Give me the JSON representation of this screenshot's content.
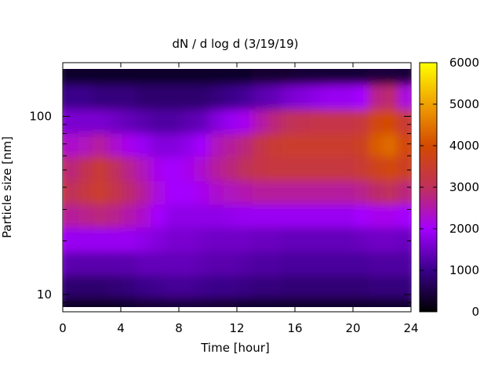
{
  "chart_data": {
    "type": "heatmap",
    "title": "dN / d log d (3/19/19)",
    "xlabel": "Time [hour]",
    "ylabel": "Particle size [nm]",
    "xlim": [
      0,
      24
    ],
    "ylim": [
      8,
      200
    ],
    "y_scale": "log",
    "x_ticks": [
      "0",
      "4",
      "8",
      "12",
      "16",
      "20",
      "24"
    ],
    "y_ticks": [
      "10",
      "100"
    ],
    "colorbar": {
      "range": [
        0,
        6000
      ],
      "ticks": [
        "0",
        "1000",
        "2000",
        "3000",
        "4000",
        "5000",
        "6000"
      ],
      "palette": "black-blue-magenta-red-orange-yellow"
    },
    "x": [
      0,
      1,
      2,
      3,
      4,
      5,
      6,
      7,
      8,
      9,
      10,
      11,
      12,
      13,
      14,
      15,
      16,
      17,
      18,
      19,
      20,
      21,
      22,
      23,
      24
    ],
    "sizes_nm": [
      9,
      12,
      16,
      22,
      30,
      40,
      55,
      75,
      100,
      140,
      190
    ],
    "values": [
      [
        300,
        900,
        1500,
        2100,
        2800,
        3600,
        3200,
        2500,
        1700,
        900,
        300
      ],
      [
        250,
        800,
        1300,
        1900,
        2600,
        3000,
        2800,
        2300,
        1600,
        1000,
        300
      ],
      [
        250,
        800,
        1300,
        1900,
        2700,
        3300,
        3100,
        2400,
        1600,
        1000,
        300
      ],
      [
        250,
        800,
        1300,
        1900,
        2800,
        3500,
        3400,
        2600,
        1600,
        900,
        300
      ],
      [
        250,
        850,
        1300,
        1900,
        2700,
        3200,
        3000,
        2300,
        1500,
        900,
        300
      ],
      [
        300,
        900,
        1300,
        1900,
        2500,
        2900,
        2700,
        2100,
        1400,
        900,
        300
      ],
      [
        350,
        1000,
        1400,
        1800,
        2300,
        2600,
        2400,
        1900,
        1300,
        800,
        300
      ],
      [
        350,
        1050,
        1400,
        1700,
        2000,
        2200,
        2100,
        1700,
        1200,
        800,
        300
      ],
      [
        400,
        1100,
        1400,
        1600,
        1800,
        2000,
        2000,
        1700,
        1200,
        800,
        300
      ],
      [
        400,
        1100,
        1400,
        1600,
        1800,
        2000,
        2100,
        1800,
        1300,
        800,
        300
      ],
      [
        400,
        1050,
        1350,
        1550,
        1800,
        2100,
        2300,
        2000,
        1400,
        800,
        300
      ],
      [
        350,
        1000,
        1300,
        1500,
        1800,
        2300,
        2600,
        2400,
        1700,
        900,
        300
      ],
      [
        350,
        1000,
        1300,
        1500,
        1850,
        2400,
        2800,
        2600,
        1900,
        1000,
        300
      ],
      [
        300,
        950,
        1250,
        1500,
        1900,
        2500,
        3000,
        2800,
        2100,
        1100,
        300
      ],
      [
        300,
        900,
        1200,
        1450,
        1900,
        2600,
        3200,
        3200,
        2500,
        1300,
        350
      ],
      [
        300,
        900,
        1200,
        1450,
        1900,
        2600,
        3300,
        3400,
        2800,
        1400,
        350
      ],
      [
        300,
        850,
        1150,
        1400,
        1900,
        2600,
        3300,
        3500,
        3000,
        1600,
        350
      ],
      [
        300,
        850,
        1150,
        1400,
        1900,
        2600,
        3300,
        3500,
        3100,
        1700,
        400
      ],
      [
        300,
        850,
        1150,
        1400,
        1900,
        2600,
        3300,
        3500,
        3200,
        1800,
        400
      ],
      [
        300,
        850,
        1150,
        1400,
        1900,
        2600,
        3300,
        3500,
        3200,
        1900,
        400
      ],
      [
        300,
        850,
        1150,
        1400,
        1900,
        2600,
        3300,
        3500,
        3200,
        1900,
        400
      ],
      [
        300,
        850,
        1150,
        1450,
        2000,
        2700,
        3400,
        3600,
        3300,
        2000,
        400
      ],
      [
        300,
        900,
        1200,
        1500,
        2100,
        2900,
        3700,
        4200,
        3900,
        2700,
        450
      ],
      [
        300,
        900,
        1200,
        1500,
        2100,
        3000,
        3900,
        4400,
        4000,
        2900,
        450
      ],
      [
        300,
        900,
        1200,
        1450,
        2000,
        2800,
        3600,
        3900,
        3400,
        2200,
        400
      ]
    ]
  }
}
